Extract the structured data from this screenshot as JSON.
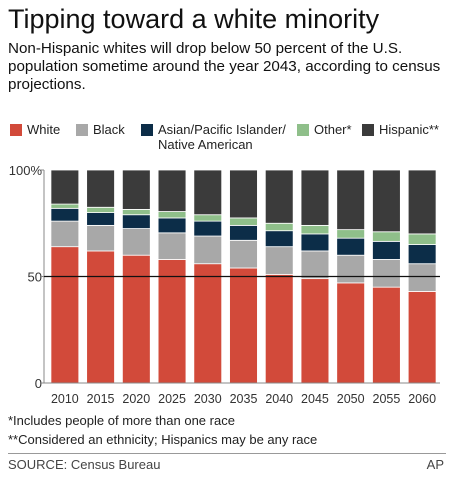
{
  "header": {
    "title": "Tipping toward a white minority",
    "subtitle": "Non-Hispanic whites will drop below 50 percent of the U.S. population sometime around the year 2043, according to census projections."
  },
  "legend": [
    {
      "name": "White",
      "color": "#d24a3a"
    },
    {
      "name": "Black",
      "color": "#a8a8a8"
    },
    {
      "name": "Asian/Pacific Islander/",
      "name_line2": "Native American",
      "color": "#0c2d48"
    },
    {
      "name": "Other*",
      "color": "#8fbf8a"
    },
    {
      "name": "Hispanic**",
      "color": "#3b3b3b"
    }
  ],
  "chart_data": {
    "type": "bar",
    "stacked": true,
    "categories": [
      "2010",
      "2015",
      "2020",
      "2025",
      "2030",
      "2035",
      "2040",
      "2045",
      "2050",
      "2055",
      "2060"
    ],
    "series": [
      {
        "name": "White",
        "color": "#d24a3a",
        "values": [
          64,
          62,
          60,
          58,
          56,
          54,
          51,
          49,
          47,
          45,
          43
        ]
      },
      {
        "name": "Black",
        "color": "#a8a8a8",
        "values": [
          12,
          12,
          12.5,
          12.5,
          13,
          13,
          13,
          13,
          13,
          13,
          13
        ]
      },
      {
        "name": "Asian/Pacific Islander/ Native American",
        "color": "#0c2d48",
        "values": [
          6,
          6,
          6.5,
          7,
          7,
          7,
          7.5,
          8,
          8,
          8.5,
          9
        ]
      },
      {
        "name": "Other*",
        "color": "#8fbf8a",
        "values": [
          2,
          2.5,
          2.5,
          3,
          3,
          3.5,
          3.5,
          4,
          4,
          4.5,
          5
        ]
      },
      {
        "name": "Hispanic**",
        "color": "#3b3b3b",
        "values": [
          16,
          17.5,
          18.5,
          19.5,
          21,
          22.5,
          25,
          26,
          28,
          29,
          30
        ]
      }
    ],
    "yticks": [
      {
        "value": 0,
        "label": "0"
      },
      {
        "value": 50,
        "label": "50"
      },
      {
        "value": 100,
        "label": "100%"
      }
    ],
    "ylim": [
      0,
      100
    ],
    "reference_line": 50,
    "grid": false,
    "legend_position": "top"
  },
  "footnotes": [
    "*Includes people of more than one race",
    "**Considered an ethnicity; Hispanics may be any race"
  ],
  "source": "SOURCE: Census Bureau",
  "credit": "AP"
}
